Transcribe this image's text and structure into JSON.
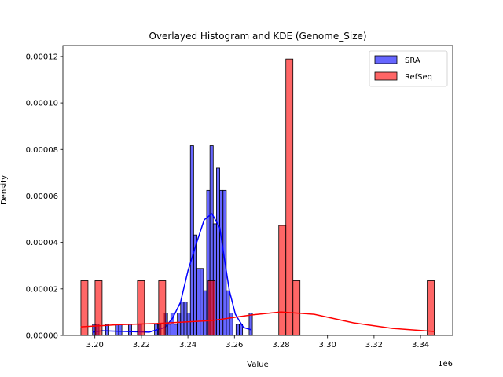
{
  "chart_data": {
    "type": "bar",
    "title": "Overlayed Histogram and KDE (Genome_Size)",
    "xlabel": "Value",
    "ylabel": "Density",
    "x_offset_label": "1e6",
    "xlim": [
      3186250,
      3353820
    ],
    "ylim": [
      0,
      0.0001247
    ],
    "xticks": [
      3200000,
      3220000,
      3240000,
      3260000,
      3280000,
      3300000,
      3320000,
      3340000
    ],
    "xtick_labels": [
      "3.20",
      "3.22",
      "3.24",
      "3.26",
      "3.28",
      "3.30",
      "3.32",
      "3.34"
    ],
    "yticks": [
      0,
      2e-05,
      4e-05,
      6e-05,
      8e-05,
      0.0001,
      0.00012
    ],
    "ytick_labels": [
      "0.00000",
      "0.00002",
      "0.00004",
      "0.00006",
      "0.00008",
      "0.00010",
      "0.00012"
    ],
    "grid": false,
    "legend_placement": "top-right",
    "series": [
      {
        "name": "SRA",
        "color": "#0000ff",
        "bar_alpha": 0.6,
        "bin_start": 3199000,
        "bin_width": 1402,
        "density": [
          4.8e-06,
          4.8e-06,
          0,
          0,
          4.8e-06,
          0,
          0,
          4.8e-06,
          4.8e-06,
          0,
          0,
          4.8e-06,
          0,
          0,
          4.8e-06,
          0,
          0,
          0,
          0,
          4.8e-06,
          4.8e-06,
          0,
          9.6e-06,
          4.8e-06,
          9.6e-06,
          4.8e-06,
          9.6e-06,
          1.44e-05,
          1.44e-05,
          9.6e-06,
          8.16e-05,
          4.32e-05,
          2.88e-05,
          2.88e-05,
          1.92e-05,
          6.24e-05,
          8.16e-05,
          4.8e-05,
          7.2e-05,
          6.24e-05,
          6.24e-05,
          1.92e-05,
          9.6e-06,
          0,
          4.8e-06,
          4.8e-06,
          0,
          0,
          9.6e-06
        ],
        "kde": {
          "x": [
            3199000,
            3203000,
            3213200,
            3223300,
            3230100,
            3233400,
            3236800,
            3240000,
            3243600,
            3247000,
            3250300,
            3253700,
            3255700,
            3257800,
            3260400,
            3263900,
            3267200
          ],
          "y": [
            1.4e-06,
            2e-06,
            1.7e-06,
            1.4e-06,
            3.4e-06,
            7.4e-06,
            1.42e-05,
            2.77e-05,
            3.95e-05,
            4.97e-05,
            5.24e-05,
            4.63e-05,
            3.28e-05,
            1.93e-05,
            9.1e-06,
            3.4e-06,
            2.4e-06
          ]
        }
      },
      {
        "name": "RefSeq",
        "color": "#ff0000",
        "bar_alpha": 0.6,
        "bin_start": 3194000,
        "bin_width": 3038,
        "density": [
          2.35e-05,
          0,
          2.35e-05,
          0,
          0,
          0,
          0,
          0,
          2.35e-05,
          0,
          0,
          2.35e-05,
          0,
          0,
          0,
          0,
          0,
          0,
          2.35e-05,
          0,
          0,
          0,
          0,
          0,
          0,
          0,
          0,
          0,
          4.73e-05,
          0.0001189,
          2.35e-05,
          0,
          0,
          0,
          0,
          0,
          0,
          0,
          0,
          0,
          0,
          0,
          0,
          0,
          0,
          0,
          0,
          0,
          0,
          2.35e-05
        ],
        "kde": {
          "x": [
            3193900,
            3209800,
            3226700,
            3250300,
            3267200,
            3280000,
            3294300,
            3311100,
            3328000,
            3345900
          ],
          "y": [
            3.7e-06,
            4.6e-06,
            5.1e-06,
            6.4e-06,
            8.8e-06,
            1.01e-05,
            9.1e-06,
            5.4e-06,
            3e-06,
            1.7e-06
          ]
        }
      }
    ]
  }
}
